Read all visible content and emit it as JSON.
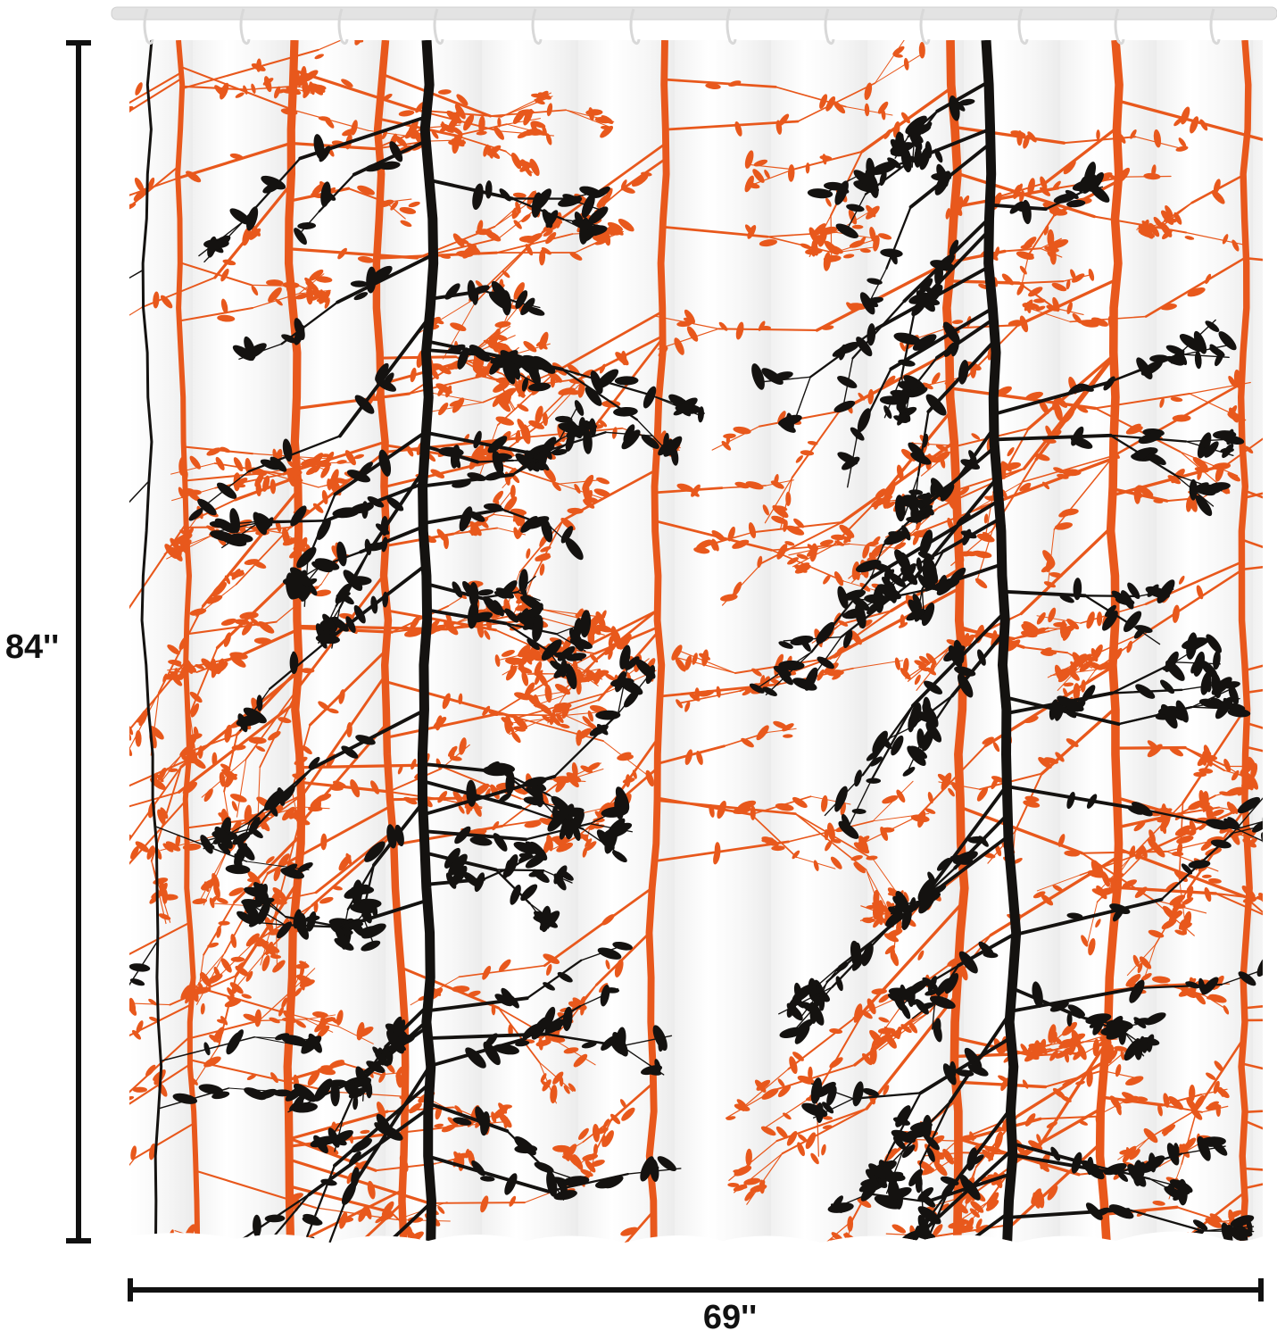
{
  "dimensions": {
    "height": "84''",
    "width": "69''"
  }
}
